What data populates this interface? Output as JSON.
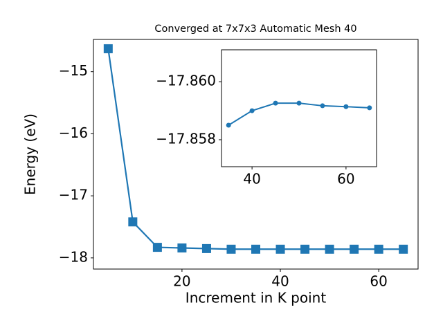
{
  "chart_data": [
    {
      "type": "line",
      "title": "Converged at 7x7x3 Automatic Mesh 40",
      "xlabel": "Increment in K point",
      "ylabel": "Energy (eV)",
      "marker": "square",
      "color": "#1f77b4",
      "x": [
        5,
        10,
        15,
        20,
        25,
        30,
        35,
        40,
        45,
        50,
        55,
        60,
        65
      ],
      "values": [
        -14.63,
        -17.42,
        -17.83,
        -17.84,
        -17.85,
        -17.86,
        -17.86,
        -17.86,
        -17.86,
        -17.86,
        -17.86,
        -17.86,
        -17.86
      ],
      "xlim": [
        2,
        68
      ],
      "ylim": [
        -18.18,
        -14.48
      ],
      "xticks": [
        20,
        40,
        60
      ],
      "yticks": [
        {
          "value": -15,
          "label": "−15"
        },
        {
          "value": -16,
          "label": "−16"
        },
        {
          "value": -17,
          "label": "−17"
        },
        {
          "value": -18,
          "label": "−18"
        }
      ]
    },
    {
      "type": "line",
      "marker": "circle",
      "color": "#1f77b4",
      "x": [
        35,
        40,
        45,
        50,
        55,
        60,
        65
      ],
      "values": [
        -17.8585,
        -17.859,
        -17.85926,
        -17.85926,
        -17.85917,
        -17.85914,
        -17.8591
      ],
      "xlim": [
        33.5,
        66.5
      ],
      "ylim": [
        -17.85707,
        -17.8611
      ],
      "inverted_y": true,
      "xticks": [
        40,
        60
      ],
      "yticks": [
        {
          "value": -17.86,
          "label": "−17.860"
        },
        {
          "value": -17.858,
          "label": "−17.858"
        }
      ]
    }
  ]
}
